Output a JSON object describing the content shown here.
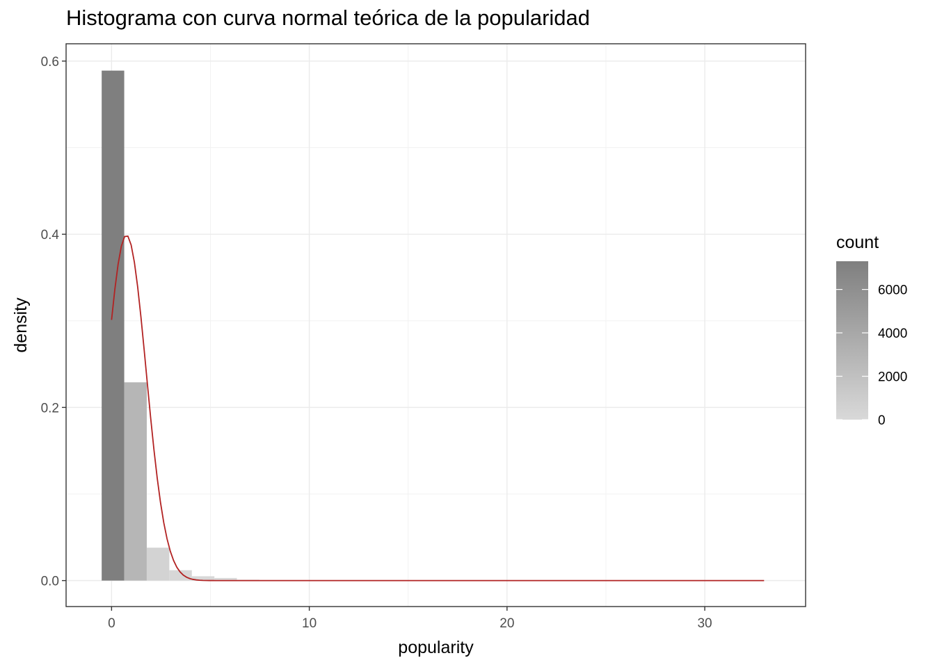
{
  "chart_data": {
    "type": "bar",
    "title": "Histograma con curva normal teórica de la popularidad",
    "xlabel": "popularity",
    "ylabel": "density",
    "xlim": [
      -2.3,
      35.1
    ],
    "ylim": [
      -0.03,
      0.62
    ],
    "x_ticks": [
      0,
      10,
      20,
      30
    ],
    "y_ticks": [
      0.0,
      0.2,
      0.4,
      0.6
    ],
    "y_tick_labels": [
      "0.0",
      "0.2",
      "0.4",
      "0.6"
    ],
    "grid": true,
    "bin_width": 1.14,
    "bins": [
      {
        "x0": -0.5,
        "density": 0.589,
        "count": 7300
      },
      {
        "x0": 0.64,
        "density": 0.229,
        "count": 2840
      },
      {
        "x0": 1.78,
        "density": 0.038,
        "count": 470
      },
      {
        "x0": 2.92,
        "density": 0.012,
        "count": 150
      },
      {
        "x0": 4.06,
        "density": 0.005,
        "count": 60
      },
      {
        "x0": 5.2,
        "density": 0.003,
        "count": 35
      },
      {
        "x0": 6.34,
        "density": 0.001,
        "count": 12
      },
      {
        "x0": 7.48,
        "density": 0.0005,
        "count": 6
      }
    ],
    "normal_curve": {
      "color": "#b22222",
      "mean": 0.75,
      "sd": 1.0,
      "x_range": [
        0,
        33
      ]
    },
    "legend": {
      "title": "count",
      "position": "right",
      "labels": [
        "6000",
        "4000",
        "2000",
        "0"
      ],
      "values": [
        6000,
        4000,
        2000,
        0
      ],
      "range": [
        0,
        7300
      ],
      "color_low": "#d9d9d9",
      "color_high": "#7f7f7f"
    }
  }
}
